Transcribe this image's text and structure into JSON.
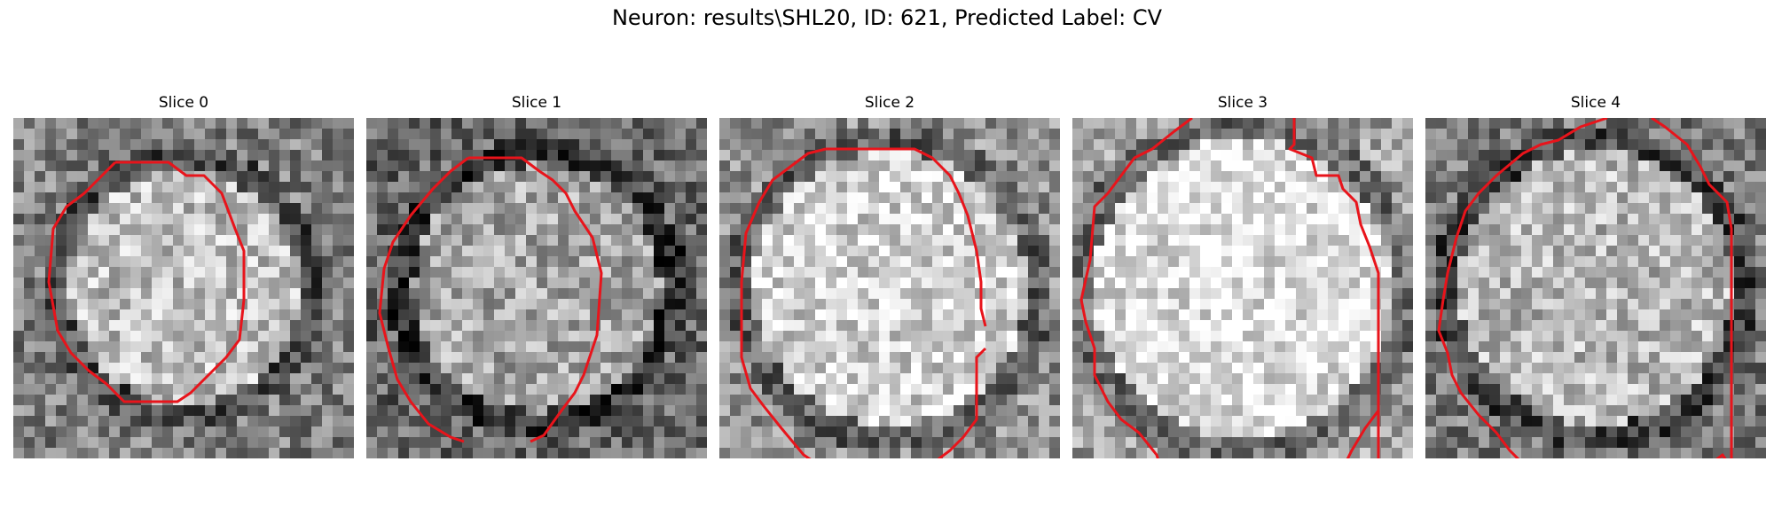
{
  "figure": {
    "title": "Neuron: results\\SHL20, ID: 621, Predicted Label: CV"
  },
  "panels": [
    {
      "title": "Slice 0",
      "brightness": 0.55,
      "blob_radius": 0.34,
      "contour_color": "#e8141b"
    },
    {
      "title": "Slice 1",
      "brightness": 0.45,
      "blob_radius": 0.36,
      "contour_color": "#e8141b"
    },
    {
      "title": "Slice 2",
      "brightness": 0.62,
      "blob_radius": 0.4,
      "contour_color": "#e8141b"
    },
    {
      "title": "Slice 3",
      "brightness": 0.68,
      "blob_radius": 0.44,
      "contour_color": "#e8141b"
    },
    {
      "title": "Slice 4",
      "brightness": 0.52,
      "blob_radius": 0.4,
      "contour_color": "#e8141b"
    }
  ]
}
